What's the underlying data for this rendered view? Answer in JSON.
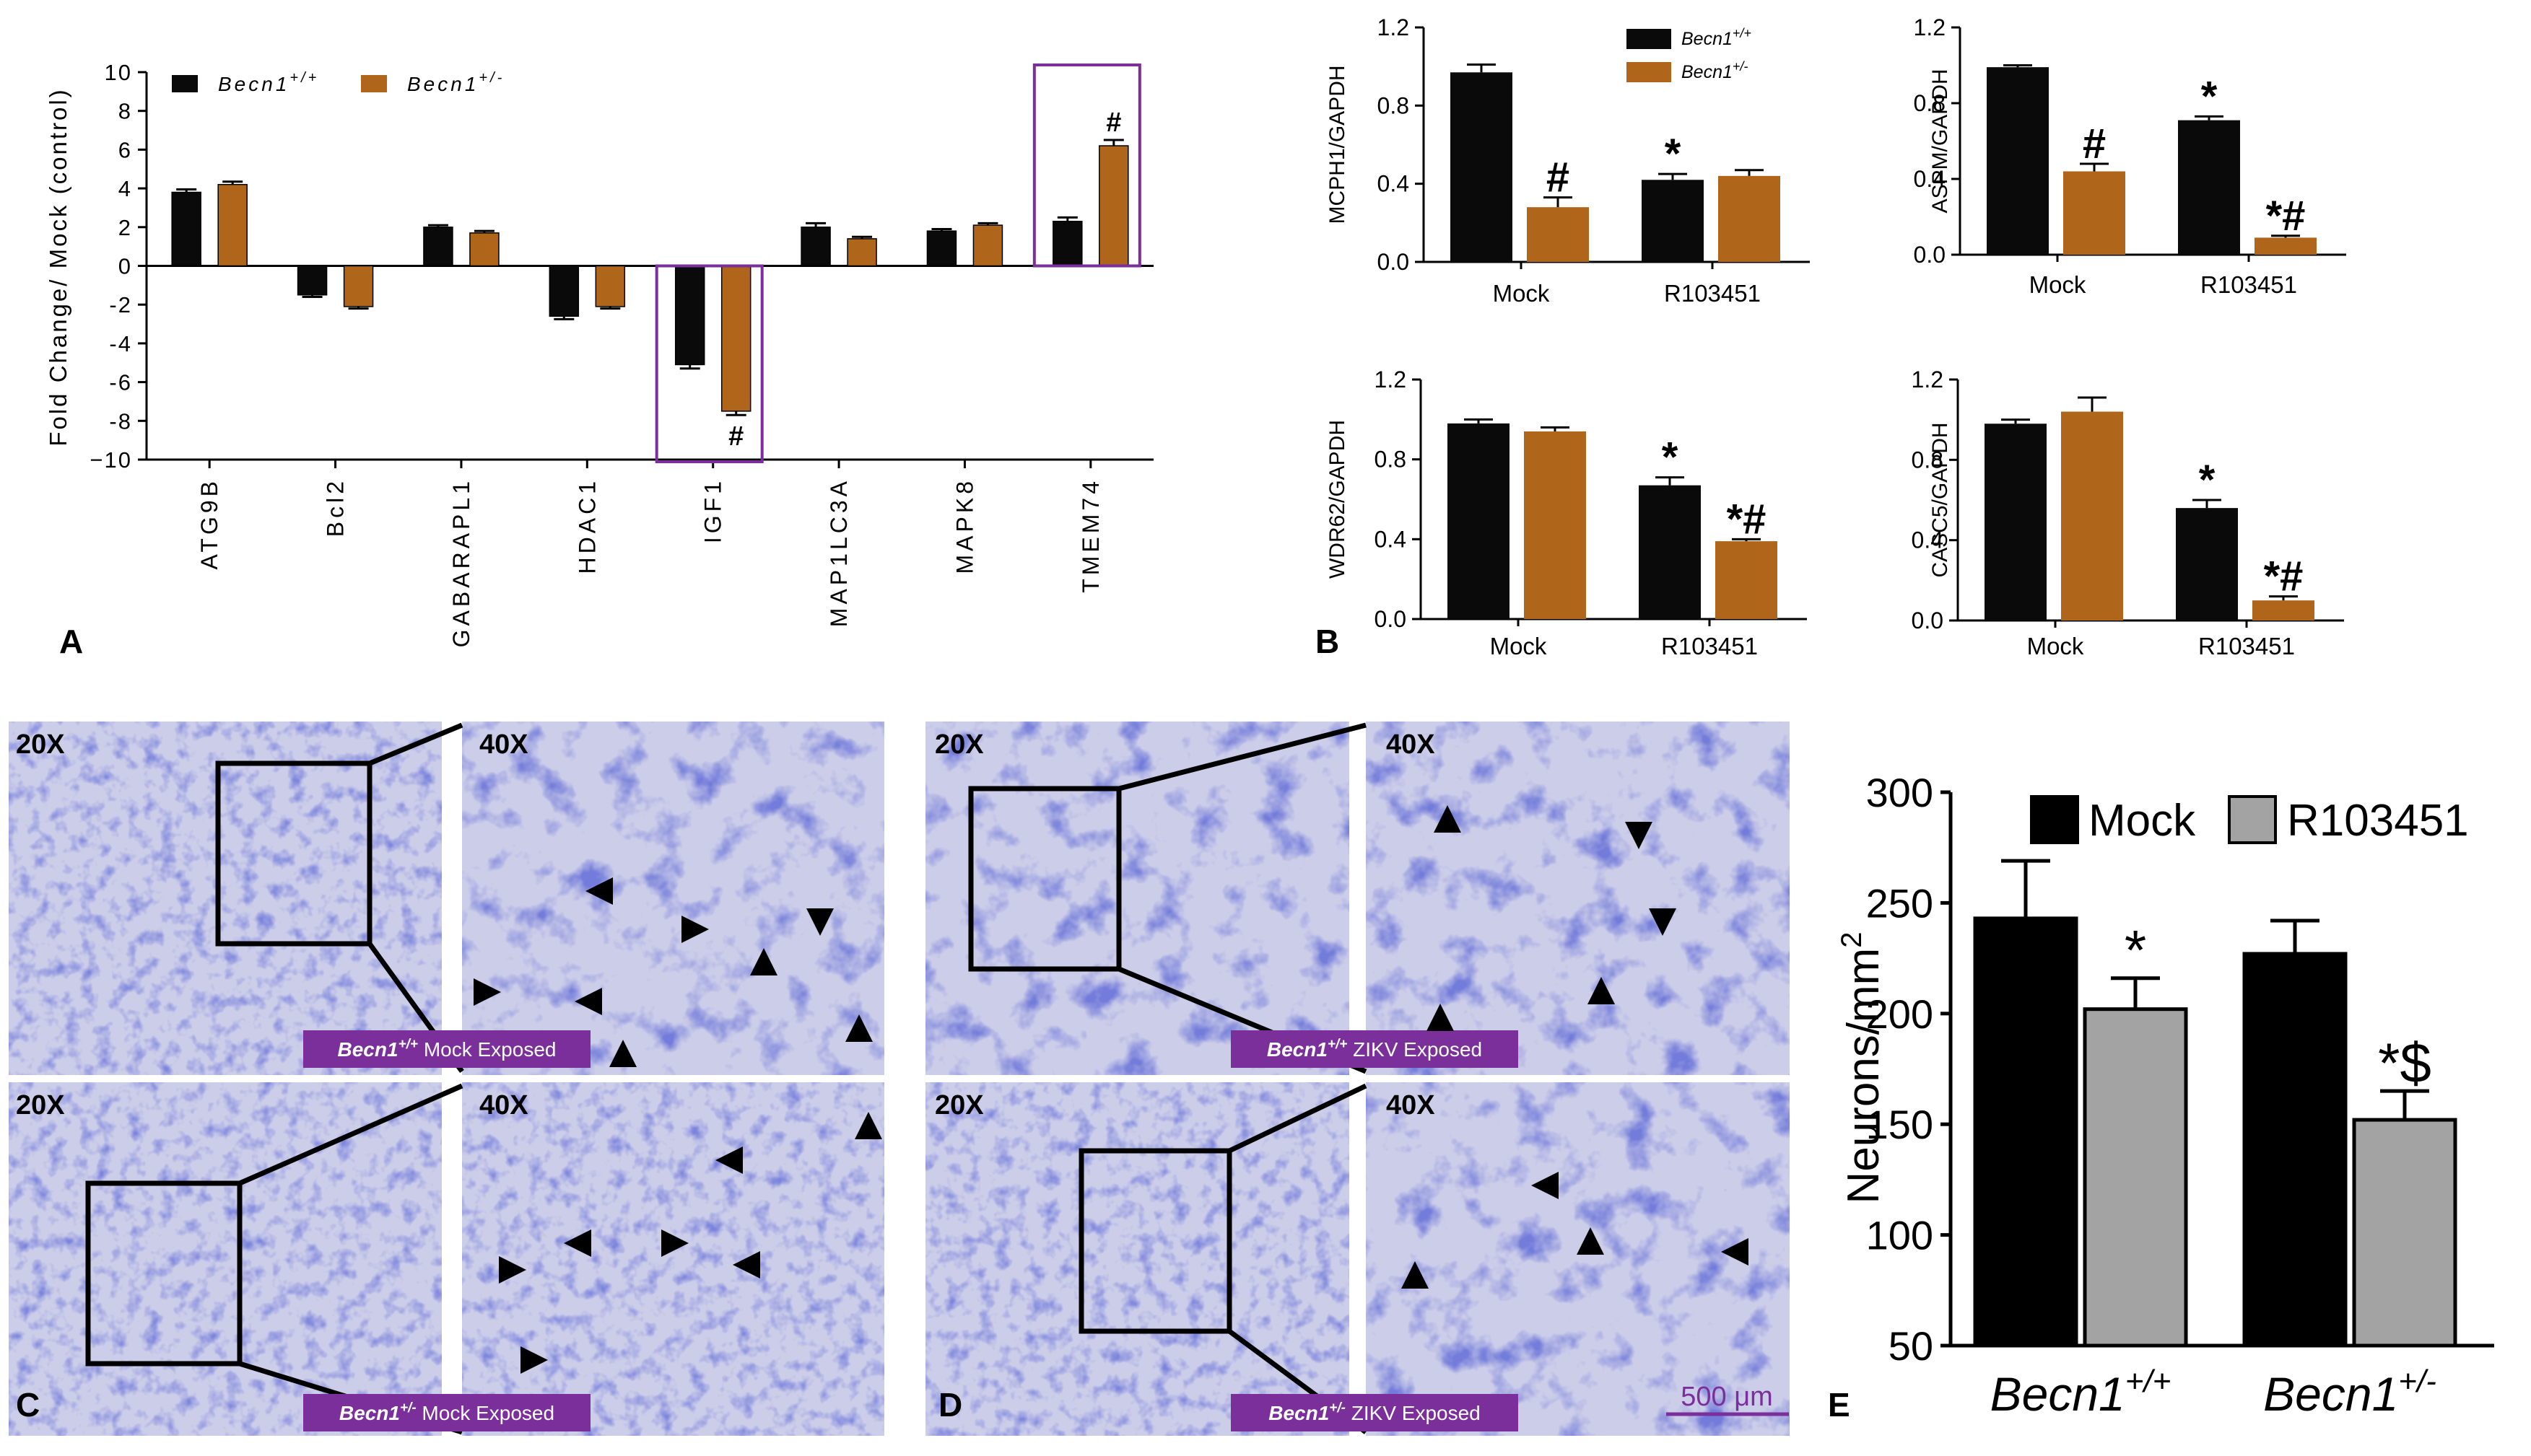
{
  "colors": {
    "wt": "#0a0a0a",
    "het": "#b0661a",
    "mockE": "#000000",
    "drugE": "#a3a3a3",
    "box": "#7a2f9a",
    "labelBg": "#7a2f9a",
    "tissue": "#cccde9",
    "tissueStain": "#2c36b8",
    "scale": "#7a2f9a"
  },
  "panel_letters": {
    "a": "A",
    "b": "B",
    "c": "C",
    "d": "D",
    "e": "E"
  },
  "chart_data": [
    {
      "id": "A",
      "type": "bar",
      "ylabel": "Fold Change/ Mock (control)",
      "ylim": [
        -10,
        10
      ],
      "yticks": [
        10,
        8,
        6,
        4,
        2,
        0,
        -2,
        -4,
        -6,
        -8,
        -10
      ],
      "ytick_labels": [
        "10",
        "8",
        "6",
        "4",
        "2",
        "0",
        "-2",
        "-4",
        "-6",
        "-8",
        "−10"
      ],
      "categories": [
        "ATG9B",
        "Bcl2",
        "GABARAPL1",
        "HDAC1",
        "IGF1",
        "MAP1LC3A",
        "MAPK8",
        "TMEM74"
      ],
      "series": [
        {
          "name": "Becn1+/+",
          "name_base": "Becn1",
          "name_sup": "+/+",
          "color_key": "wt",
          "values": [
            3.8,
            -1.5,
            2.0,
            -2.6,
            -5.1,
            2.0,
            1.8,
            2.3
          ],
          "errors": [
            0.15,
            0.1,
            0.1,
            0.15,
            0.2,
            0.2,
            0.1,
            0.2
          ]
        },
        {
          "name": "Becn1+/-",
          "name_base": "Becn1",
          "name_sup": "+/-",
          "color_key": "het",
          "values": [
            4.2,
            -2.1,
            1.7,
            -2.1,
            -7.5,
            1.4,
            2.1,
            6.2
          ],
          "errors": [
            0.15,
            0.1,
            0.1,
            0.1,
            0.2,
            0.1,
            0.1,
            0.3
          ]
        }
      ],
      "annotations": [
        {
          "category": 7,
          "series": 1,
          "text": "#"
        },
        {
          "category": 4,
          "series": 1,
          "text": "#"
        }
      ],
      "highlight_boxes": [
        "IGF1",
        "TMEM74"
      ]
    },
    {
      "id": "B1",
      "type": "bar",
      "ylabel": "MCPH1/GAPDH",
      "ylim": [
        0,
        1.2
      ],
      "yticks": [
        0,
        0.4,
        0.8,
        1.2
      ],
      "ytick_labels": [
        "0.0",
        "0.4",
        "0.8",
        "1.2"
      ],
      "categories": [
        "Mock",
        "R103451"
      ],
      "legend": [
        "Becn1+/+",
        "Becn1+/-"
      ],
      "series": [
        {
          "name": "Becn1+/+",
          "values": [
            0.97,
            0.42
          ],
          "errors": [
            0.04,
            0.03
          ],
          "annotations": [
            "",
            "*"
          ]
        },
        {
          "name": "Becn1+/-",
          "values": [
            0.28,
            0.44
          ],
          "errors": [
            0.05,
            0.03
          ],
          "annotations": [
            "#",
            ""
          ]
        }
      ]
    },
    {
      "id": "B2",
      "type": "bar",
      "ylabel": "ASPM/GAPDH",
      "ylim": [
        0,
        1.2
      ],
      "yticks": [
        0,
        0.4,
        0.8,
        1.2
      ],
      "ytick_labels": [
        "0.0",
        "0.4",
        "0.8",
        "1.2"
      ],
      "categories": [
        "Mock",
        "R103451"
      ],
      "series": [
        {
          "name": "Becn1+/+",
          "values": [
            0.99,
            0.71
          ],
          "errors": [
            0.01,
            0.02
          ],
          "annotations": [
            "",
            "*"
          ]
        },
        {
          "name": "Becn1+/-",
          "values": [
            0.44,
            0.09
          ],
          "errors": [
            0.04,
            0.01
          ],
          "annotations": [
            "#",
            "*#"
          ]
        }
      ]
    },
    {
      "id": "B3",
      "type": "bar",
      "ylabel": "WDR62/GAPDH",
      "ylim": [
        0,
        1.2
      ],
      "yticks": [
        0,
        0.4,
        0.8,
        1.2
      ],
      "ytick_labels": [
        "0.0",
        "0.4",
        "0.8",
        "1.2"
      ],
      "categories": [
        "Mock",
        "R103451"
      ],
      "series": [
        {
          "name": "Becn1+/+",
          "values": [
            0.98,
            0.67
          ],
          "errors": [
            0.02,
            0.04
          ],
          "annotations": [
            "",
            "*"
          ]
        },
        {
          "name": "Becn1+/-",
          "values": [
            0.94,
            0.39
          ],
          "errors": [
            0.02,
            0.01
          ],
          "annotations": [
            "",
            "*#"
          ]
        }
      ]
    },
    {
      "id": "B4",
      "type": "bar",
      "ylabel": "CASC5/GAPDH",
      "ylim": [
        0,
        1.2
      ],
      "yticks": [
        0,
        0.4,
        0.8,
        1.2
      ],
      "ytick_labels": [
        "0.0",
        "0.4",
        "0.8",
        "1.2"
      ],
      "categories": [
        "Mock",
        "R103451"
      ],
      "series": [
        {
          "name": "Becn1+/+",
          "values": [
            0.98,
            0.56
          ],
          "errors": [
            0.02,
            0.04
          ],
          "annotations": [
            "",
            "*"
          ]
        },
        {
          "name": "Becn1+/-",
          "values": [
            1.04,
            0.1
          ],
          "errors": [
            0.07,
            0.02
          ],
          "annotations": [
            "",
            "*#"
          ]
        }
      ]
    },
    {
      "id": "E",
      "type": "bar",
      "ylabel": "Neurons/mm",
      "ylabel_sup": "2",
      "ylim": [
        50,
        300
      ],
      "yticks": [
        50,
        100,
        150,
        200,
        250,
        300
      ],
      "ytick_labels": [
        "50",
        "100",
        "150",
        "200",
        "250",
        "300"
      ],
      "categories": [
        "Becn1+/+",
        "Becn1+/-"
      ],
      "category_base": [
        "Becn1",
        "Becn1"
      ],
      "category_sup": [
        "+/+",
        "+/-"
      ],
      "series": [
        {
          "name": "Mock",
          "values": [
            243,
            227
          ],
          "errors": [
            26,
            15
          ],
          "annotations": [
            "",
            ""
          ]
        },
        {
          "name": "R103451",
          "values": [
            202,
            152
          ],
          "errors": [
            14,
            13
          ],
          "annotations": [
            "*",
            "*$"
          ]
        }
      ]
    }
  ],
  "micrographs": {
    "C": [
      {
        "mag_left": "20X",
        "mag_right": "40X",
        "caption_gene": "Becn1",
        "caption_sup": "+/+",
        "caption_text": " Mock Exposed"
      },
      {
        "mag_left": "20X",
        "mag_right": "40X",
        "caption_gene": "Becn1",
        "caption_sup": "+/-",
        "caption_text": " Mock Exposed"
      }
    ],
    "D": [
      {
        "mag_left": "20X",
        "mag_right": "40X",
        "caption_gene": "Becn1",
        "caption_sup": "+/+",
        "caption_text": " ZIKV Exposed"
      },
      {
        "mag_left": "20X",
        "mag_right": "40X",
        "caption_gene": "Becn1",
        "caption_sup": "+/-",
        "caption_text": " ZIKV Exposed"
      }
    ],
    "scale_bar": "500 μm"
  }
}
